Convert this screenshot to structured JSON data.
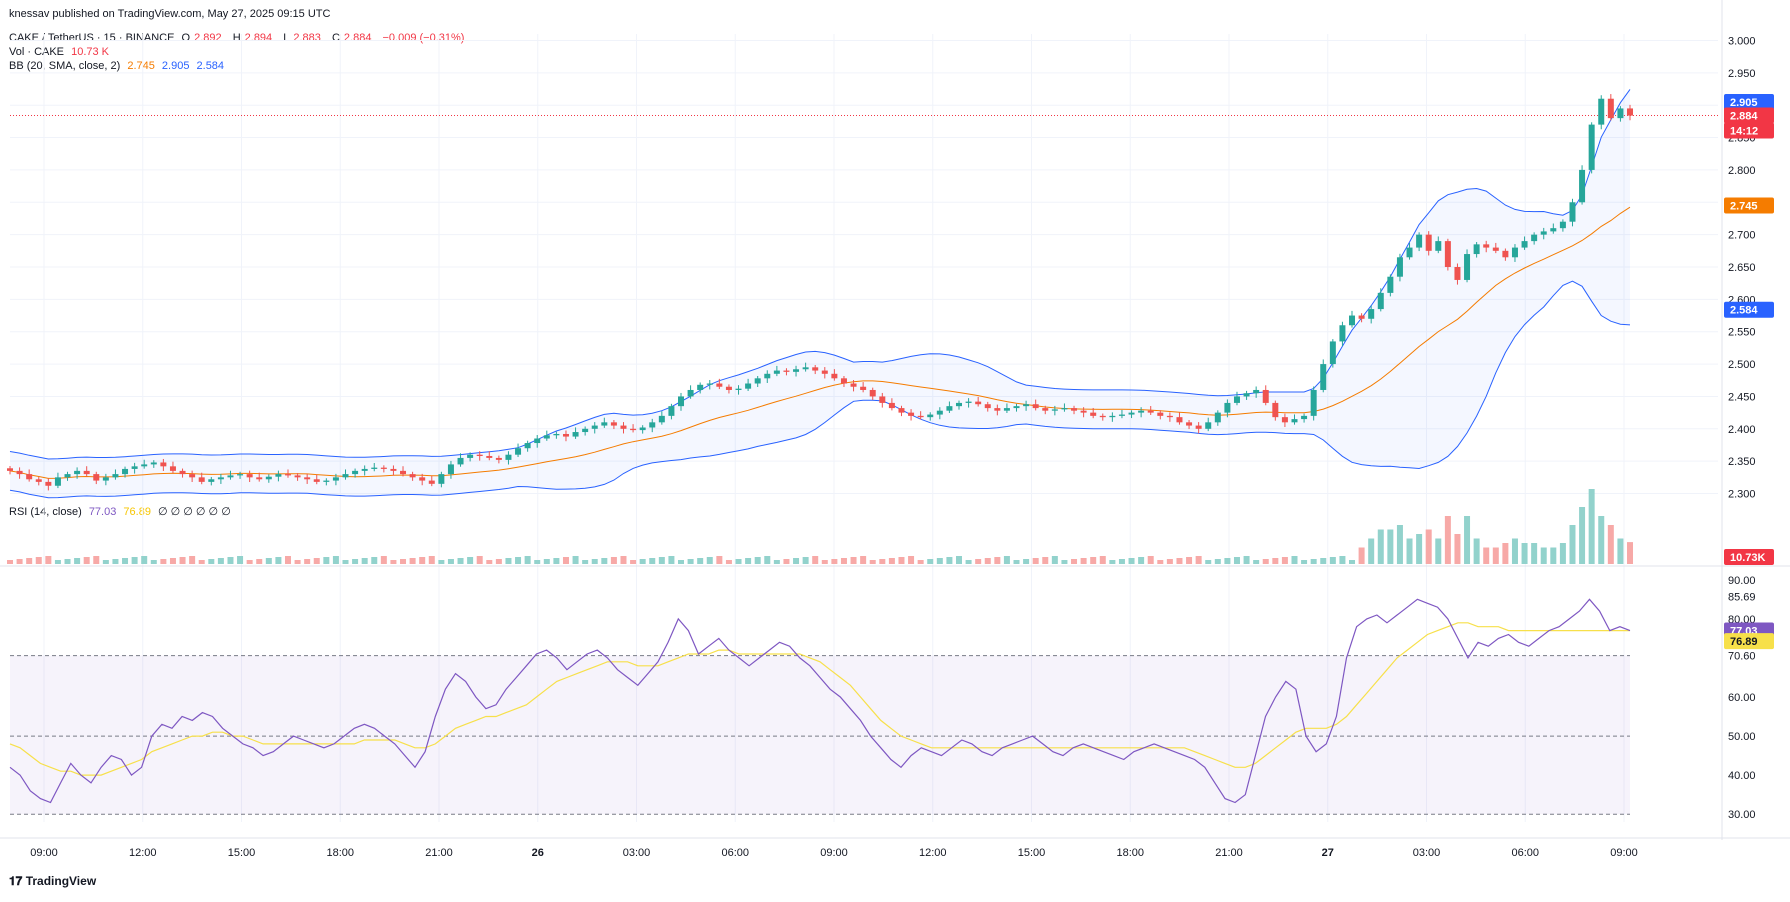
{
  "publisher_line": "knessav published on TradingView.com, May 27, 2025 09:15 UTC",
  "footer_logo": "TradingView",
  "header": {
    "symbol": "CAKE / TetherUS · 15 · BINANCE",
    "ohlc": {
      "o_label": "O",
      "o": "2.892",
      "h_label": "H",
      "h": "2.894",
      "l_label": "L",
      "l": "2.883",
      "c_label": "C",
      "c": "2.884",
      "change": "−0.009 (−0.31%)"
    },
    "vol_label": "Vol · CAKE",
    "vol_value": "10.73 K",
    "bb_label": "BB (20, SMA, close, 2)",
    "bb_basis": "2.745",
    "bb_upper": "2.905",
    "bb_lower": "2.584",
    "rsi_label": "RSI (14, close)",
    "rsi_value": "77.03",
    "rsi_ma": "76.89",
    "rsi_extra": "∅ ∅ ∅ ∅ ∅ ∅"
  },
  "colors": {
    "up": "#26a69a",
    "down": "#ef5350",
    "bb_band": "#2962ff",
    "bb_basis": "#f57c00",
    "rsi": "#7e57c2",
    "rsi_ma": "#f7e04a",
    "grid": "#f0f3fa"
  },
  "chart_data": {
    "type": "candlestick",
    "symbol": "CAKE / TetherUS",
    "interval": "15",
    "exchange": "BINANCE",
    "price_axis": {
      "ticks": [
        "3.000",
        "2.950",
        "2.900",
        "2.850",
        "2.800",
        "2.750",
        "2.700",
        "2.650",
        "2.600",
        "2.550",
        "2.500",
        "2.450",
        "2.400",
        "2.350",
        "2.300"
      ],
      "range": [
        2.29,
        3.01
      ]
    },
    "price_badges": {
      "upper": "2.905",
      "last": "2.884",
      "countdown": "14:12",
      "basis": "2.745",
      "lower": "2.584",
      "volume": "10.73K"
    },
    "x_ticks": [
      "09:00",
      "12:00",
      "15:00",
      "18:00",
      "21:00",
      "26",
      "03:00",
      "06:00",
      "09:00",
      "12:00",
      "15:00",
      "18:00",
      "21:00",
      "27",
      "03:00",
      "06:00",
      "09:00"
    ],
    "close_series_approx": [
      2.335,
      2.33,
      2.322,
      2.318,
      2.312,
      2.325,
      2.33,
      2.335,
      2.33,
      2.32,
      2.325,
      2.33,
      2.338,
      2.342,
      2.345,
      2.348,
      2.342,
      2.335,
      2.33,
      2.325,
      2.318,
      2.322,
      2.325,
      2.328,
      2.33,
      2.325,
      2.322,
      2.326,
      2.33,
      2.328,
      2.325,
      2.322,
      2.318,
      2.32,
      2.325,
      2.33,
      2.335,
      2.338,
      2.34,
      2.338,
      2.335,
      2.33,
      2.325,
      2.32,
      2.315,
      2.33,
      2.345,
      2.355,
      2.36,
      2.358,
      2.355,
      2.352,
      2.36,
      2.37,
      2.378,
      2.385,
      2.39,
      2.392,
      2.388,
      2.395,
      2.4,
      2.405,
      2.41,
      2.405,
      2.4,
      2.398,
      2.402,
      2.41,
      2.42,
      2.435,
      2.45,
      2.46,
      2.468,
      2.47,
      2.465,
      2.46,
      2.462,
      2.47,
      2.478,
      2.485,
      2.49,
      2.488,
      2.492,
      2.495,
      2.49,
      2.485,
      2.478,
      2.47,
      2.465,
      2.46,
      2.45,
      2.44,
      2.432,
      2.425,
      2.42,
      2.418,
      2.422,
      2.428,
      2.435,
      2.44,
      2.442,
      2.438,
      2.432,
      2.428,
      2.432,
      2.435,
      2.438,
      2.432,
      2.428,
      2.43,
      2.432,
      2.428,
      2.425,
      2.42,
      2.418,
      2.42,
      2.422,
      2.425,
      2.428,
      2.425,
      2.42,
      2.418,
      2.41,
      2.405,
      2.4,
      2.41,
      2.425,
      2.44,
      2.45,
      2.455,
      2.46,
      2.44,
      2.418,
      2.41,
      2.415,
      2.42,
      2.46,
      2.5,
      2.535,
      2.56,
      2.575,
      2.57,
      2.585,
      2.61,
      2.635,
      2.665,
      2.68,
      2.7,
      2.675,
      2.69,
      2.65,
      2.63,
      2.67,
      2.685,
      2.68,
      2.675,
      2.665,
      2.68,
      2.69,
      2.7,
      2.705,
      2.71,
      2.72,
      2.75,
      2.8,
      2.87,
      2.91,
      2.88,
      2.895,
      2.884
    ],
    "volume_last": "10.73K",
    "bollinger": {
      "period": 20,
      "type": "SMA",
      "source": "close",
      "mult": 2,
      "basis": 2.745,
      "upper": 2.905,
      "lower": 2.584
    },
    "rsi": {
      "period": 14,
      "source": "close",
      "axis_ticks": [
        "90.00",
        "85.69",
        "80.00",
        "77.03",
        "76.89",
        "70.60",
        "60.00",
        "50.00",
        "40.00",
        "30.00"
      ],
      "range": [
        28,
        92
      ],
      "overbought": 70.6,
      "oversold": 30,
      "midline": 50,
      "value": 77.03,
      "ma_value": 76.89,
      "recent_high": 85.69,
      "values_approx": [
        42,
        40,
        36,
        34,
        33,
        38,
        43,
        40,
        38,
        42,
        45,
        44,
        40,
        42,
        50,
        53,
        52,
        55,
        54,
        56,
        55,
        52,
        50,
        48,
        47,
        45,
        46,
        48,
        50,
        49,
        48,
        47,
        48,
        50,
        52,
        53,
        52,
        50,
        48,
        45,
        42,
        46,
        55,
        62,
        66,
        64,
        60,
        57,
        58,
        62,
        65,
        68,
        71,
        72,
        70,
        67,
        69,
        71,
        72,
        70,
        67,
        65,
        63,
        66,
        69,
        74,
        80,
        77,
        71,
        73,
        75,
        72,
        70,
        68,
        70,
        72,
        74,
        73,
        70,
        68,
        65,
        62,
        60,
        57,
        54,
        50,
        47,
        44,
        42,
        45,
        47,
        46,
        45,
        47,
        49,
        48,
        46,
        45,
        47,
        48,
        49,
        50,
        48,
        46,
        45,
        47,
        48,
        47,
        46,
        45,
        44,
        46,
        47,
        48,
        47,
        46,
        45,
        44,
        42,
        38,
        34,
        33,
        35,
        45,
        55,
        60,
        64,
        62,
        50,
        46,
        48,
        55,
        70,
        78,
        80,
        81,
        79,
        81,
        83,
        85,
        84,
        83,
        80,
        75,
        70,
        74,
        73,
        75,
        76,
        74,
        73,
        75,
        77,
        78,
        80,
        82,
        85,
        82,
        77,
        78,
        77
      ],
      "ma_values_approx": [
        48,
        47,
        45,
        43,
        42,
        41,
        41,
        40,
        40,
        40,
        41,
        42,
        43,
        44,
        46,
        47,
        48,
        49,
        50,
        50,
        51,
        51,
        50,
        50,
        49,
        48,
        48,
        48,
        48,
        48,
        48,
        48,
        48,
        48,
        48,
        49,
        49,
        49,
        49,
        48,
        47,
        47,
        48,
        50,
        52,
        53,
        54,
        55,
        55,
        56,
        57,
        58,
        60,
        62,
        64,
        65,
        66,
        67,
        68,
        69,
        69,
        69,
        68,
        68,
        68,
        69,
        70,
        71,
        71,
        71,
        72,
        72,
        71,
        71,
        71,
        71,
        71,
        71,
        71,
        70,
        69,
        67,
        65,
        63,
        60,
        57,
        54,
        52,
        50,
        49,
        48,
        47,
        47,
        47,
        47,
        47,
        47,
        47,
        47,
        47,
        47,
        47,
        47,
        47,
        47,
        47,
        47,
        47,
        47,
        47,
        47,
        47,
        47,
        47,
        47,
        47,
        47,
        46,
        45,
        44,
        43,
        42,
        42,
        43,
        45,
        47,
        49,
        51,
        52,
        52,
        52,
        53,
        55,
        58,
        61,
        64,
        67,
        70,
        72,
        74,
        76,
        77,
        78,
        79,
        79,
        78,
        78,
        78,
        77,
        77,
        77,
        77,
        77,
        77,
        77,
        77,
        77,
        77,
        77,
        77,
        77
      ]
    }
  }
}
